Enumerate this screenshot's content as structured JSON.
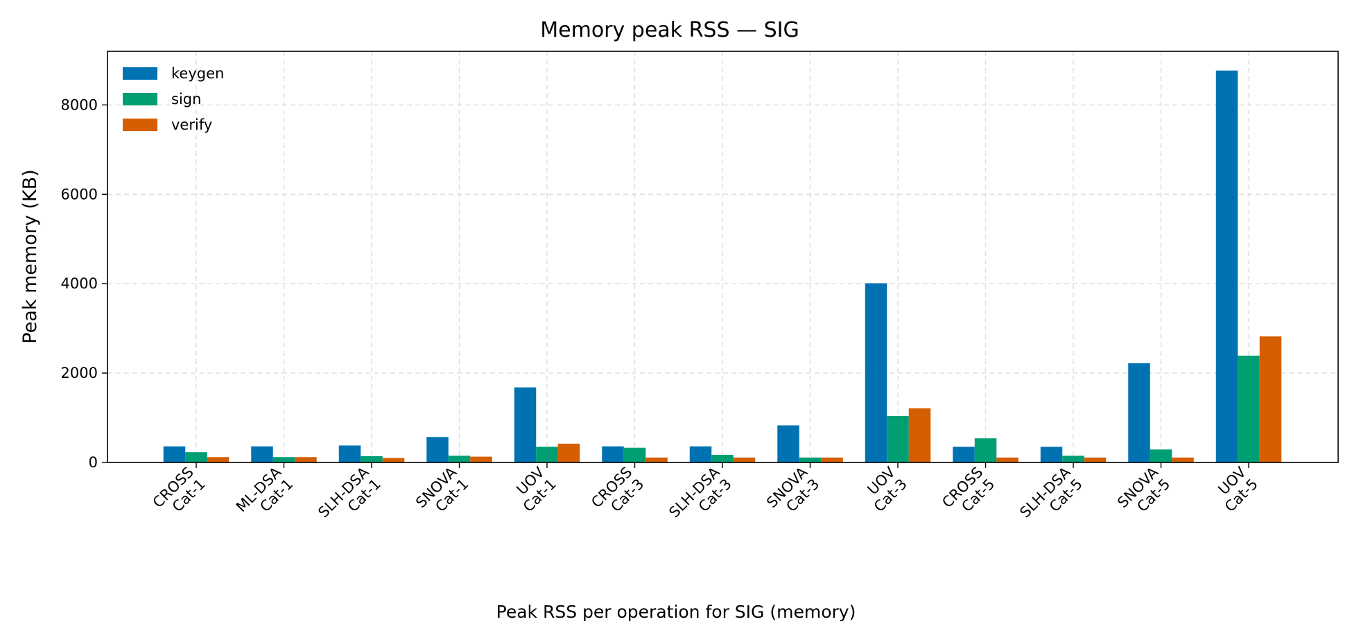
{
  "chart_data": {
    "type": "bar",
    "title": "Memory peak RSS — SIG",
    "xlabel": "",
    "ylabel": "Peak memory (KB)",
    "ylim": [
      0,
      9200
    ],
    "yticks": [
      0,
      2000,
      4000,
      6000,
      8000
    ],
    "grid": true,
    "legend_position": "top-left",
    "categories": [
      [
        "CROSS",
        "Cat-1"
      ],
      [
        "ML-DSA",
        "Cat-1"
      ],
      [
        "SLH-DSA",
        "Cat-1"
      ],
      [
        "SNOVA",
        "Cat-1"
      ],
      [
        "UOV",
        "Cat-1"
      ],
      [
        "CROSS",
        "Cat-3"
      ],
      [
        "SLH-DSA",
        "Cat-3"
      ],
      [
        "SNOVA",
        "Cat-3"
      ],
      [
        "UOV",
        "Cat-3"
      ],
      [
        "CROSS",
        "Cat-5"
      ],
      [
        "SLH-DSA",
        "Cat-5"
      ],
      [
        "SNOVA",
        "Cat-5"
      ],
      [
        "UOV",
        "Cat-5"
      ]
    ],
    "series": [
      {
        "name": "keygen",
        "color": "#0072b2",
        "values": [
          360,
          360,
          380,
          570,
          1680,
          360,
          360,
          830,
          4010,
          350,
          350,
          2220,
          8770
        ]
      },
      {
        "name": "sign",
        "color": "#009e73",
        "values": [
          230,
          120,
          140,
          150,
          350,
          330,
          170,
          110,
          1040,
          540,
          150,
          290,
          2390
        ]
      },
      {
        "name": "verify",
        "color": "#d55e00",
        "values": [
          120,
          120,
          100,
          130,
          420,
          110,
          110,
          110,
          1210,
          110,
          110,
          110,
          2820
        ]
      }
    ]
  },
  "caption": "Peak RSS per operation for SIG (memory)"
}
